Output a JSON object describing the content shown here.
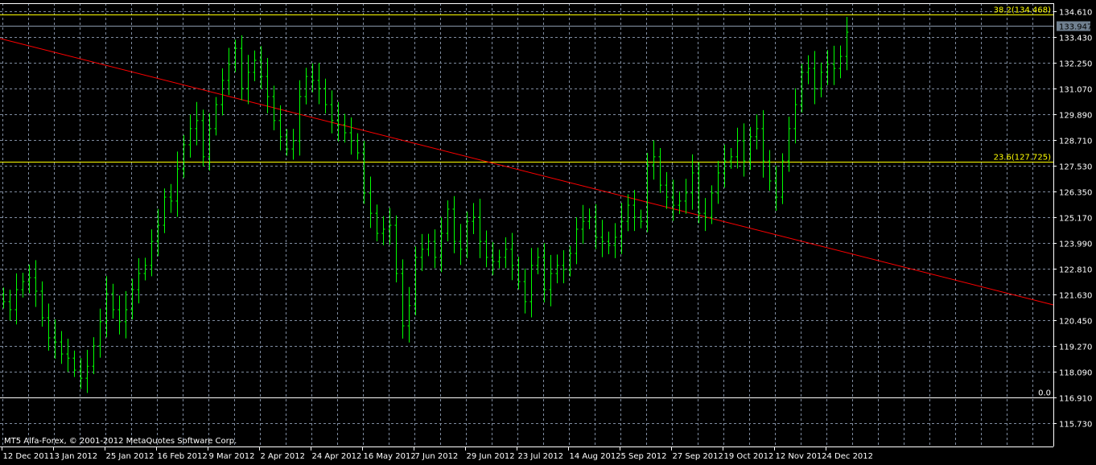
{
  "watermark": "MT5 Alfa-Forex, © 2001-2012 MetaQuotes Software Corp.",
  "colors": {
    "background": "#000000",
    "bars": "#00ff00",
    "grid": "#7f8ca0",
    "trendline": "#ff0000",
    "fibo": "#ffff00",
    "axis": "#ffffff",
    "current_price_line": "#8898aa",
    "current_price_box": "#708090"
  },
  "chart_data": {
    "type": "bar",
    "bar_style": "ohlc",
    "ylim": [
      115.2,
      135.126
    ],
    "grid": true,
    "y_ticks": [
      "134.610",
      "133.430",
      "132.250",
      "131.070",
      "129.890",
      "128.710",
      "127.530",
      "126.350",
      "125.170",
      "123.990",
      "122.810",
      "121.630",
      "120.450",
      "119.270",
      "118.090",
      "116.910",
      "115.730"
    ],
    "x_ticks": [
      "12 Dec 2011",
      "3 Jan 2012",
      "25 Jan 2012",
      "16 Feb 2012",
      "9 Mar 2012",
      "2 Apr 2012",
      "24 Apr 2012",
      "16 May 2012",
      "7 Jun 2012",
      "29 Jun 2012",
      "23 Jul 2012",
      "14 Aug 2012",
      "5 Sep 2012",
      "27 Sep 2012",
      "19 Oct 2012",
      "12 Nov 2012",
      "4 Dec 2012"
    ],
    "close": [
      121.3,
      120.93,
      121.85,
      122.22,
      122.4,
      121.78,
      120.56,
      119.64,
      119.45,
      118.9,
      118.71,
      118.16,
      117.79,
      118.34,
      119.27,
      120.38,
      121.67,
      120.93,
      120.38,
      120.93,
      121.85,
      122.59,
      122.96,
      124.06,
      124.8,
      126.09,
      125.91,
      127.38,
      128.49,
      129.23,
      129.6,
      127.94,
      129.23,
      130.33,
      131.44,
      132.18,
      132.91,
      131.07,
      131.81,
      132.36,
      131.62,
      130.7,
      129.6,
      128.86,
      128.3,
      128.67,
      130.7,
      131.62,
      131.44,
      131.07,
      130.33,
      129.6,
      129.41,
      129.04,
      128.67,
      128.12,
      126.28,
      125.35,
      124.43,
      124.62,
      124.8,
      122.59,
      120.19,
      121.12,
      123.33,
      123.7,
      124.06,
      123.33,
      124.43,
      125.54,
      124.06,
      123.7,
      124.98,
      125.17,
      124.06,
      123.33,
      123.14,
      123.33,
      123.7,
      122.96,
      122.22,
      121.3,
      122.96,
      123.33,
      121.85,
      122.59,
      122.96,
      122.77,
      123.51,
      124.62,
      124.98,
      125.17,
      124.25,
      124.06,
      123.88,
      124.25,
      124.98,
      125.72,
      125.17,
      124.98,
      127.57,
      127.94,
      126.64,
      126.09,
      125.72,
      125.91,
      126.28,
      127.2,
      125.35,
      125.17,
      126.28,
      127.2,
      127.75,
      127.94,
      128.67,
      127.75,
      128.86,
      129.23,
      127.75,
      126.83,
      126.09,
      127.75,
      129.23,
      130.33,
      131.81,
      131.99,
      131.07,
      131.81,
      132.18,
      131.99,
      132.54,
      133.65
    ],
    "current_price": "133.947",
    "fibo_levels": [
      {
        "label": "38.2(134.468)",
        "price": 134.468
      },
      {
        "label": "23.6(127.725)",
        "price": 127.725
      },
      {
        "label": "0.0",
        "price": 116.91
      }
    ],
    "trendline": {
      "start_price": 133.36,
      "end_price": 121.15
    }
  }
}
